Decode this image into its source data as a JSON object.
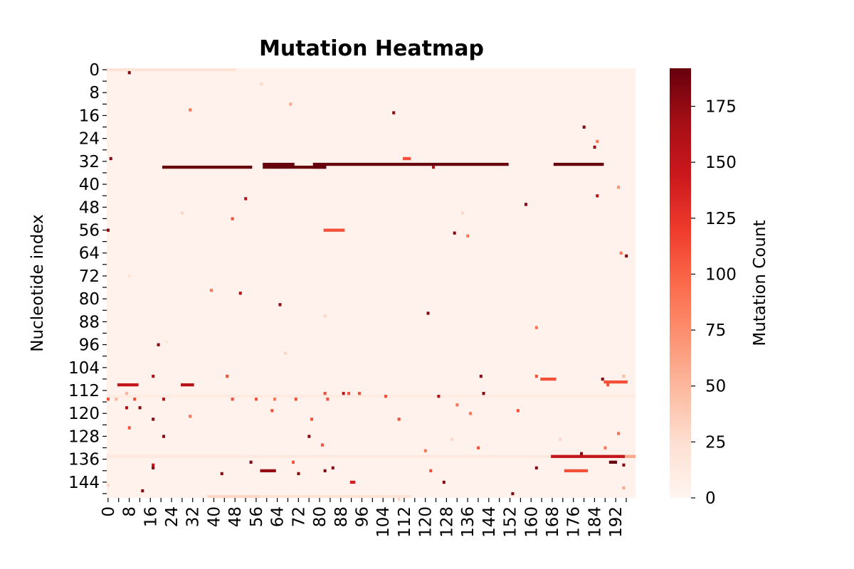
{
  "chart_data": {
    "type": "heatmap",
    "title": "Mutation Heatmap",
    "xlabel": "",
    "ylabel": "Nucleotide index",
    "rows": 150,
    "cols": 200,
    "x_tick_step": 4,
    "y_tick_step": 4,
    "x_ticks": [
      "0",
      "8",
      "16",
      "24",
      "32",
      "40",
      "48",
      "56",
      "64",
      "72",
      "80",
      "88",
      "96",
      "104",
      "112",
      "120",
      "128",
      "136",
      "144",
      "152",
      "160",
      "168",
      "176",
      "184",
      "192"
    ],
    "y_ticks": [
      "0",
      "8",
      "16",
      "24",
      "32",
      "40",
      "48",
      "56",
      "64",
      "72",
      "80",
      "88",
      "96",
      "104",
      "112",
      "120",
      "128",
      "136",
      "144"
    ],
    "colorbar": {
      "label": "Mutation Count",
      "min": 0,
      "max": 192,
      "ticks": [
        "0",
        "25",
        "50",
        "75",
        "100",
        "125",
        "150",
        "175"
      ],
      "colormap": "Reds",
      "colors": [
        "#fff5f0",
        "#fee0d2",
        "#fcbba1",
        "#fc9272",
        "#fb6a4a",
        "#ef3b2c",
        "#cb181d",
        "#a50f15",
        "#67000d"
      ]
    },
    "background_value": 3,
    "segments": [
      {
        "row": 0,
        "c0": 0,
        "c1": 49,
        "v": 20
      },
      {
        "row": 34,
        "c0": 21,
        "c1": 55,
        "v": 192
      },
      {
        "row": 33,
        "c0": 59,
        "c1": 71,
        "v": 192
      },
      {
        "row": 34,
        "c0": 59,
        "c1": 83,
        "v": 192
      },
      {
        "row": 33,
        "c0": 78,
        "c1": 152,
        "v": 192
      },
      {
        "row": 34,
        "c0": 78,
        "c1": 83,
        "v": 192
      },
      {
        "row": 33,
        "c0": 169,
        "c1": 188,
        "v": 192
      },
      {
        "row": 56,
        "c0": 82,
        "c1": 90,
        "v": 110
      },
      {
        "row": 108,
        "c0": 164,
        "c1": 170,
        "v": 110
      },
      {
        "row": 110,
        "c0": 4,
        "c1": 12,
        "v": 150
      },
      {
        "row": 110,
        "c0": 28,
        "c1": 33,
        "v": 160
      },
      {
        "row": 109,
        "c0": 188,
        "c1": 197,
        "v": 110
      },
      {
        "row": 114,
        "c0": 0,
        "c1": 200,
        "v": 12
      },
      {
        "row": 135,
        "c0": 0,
        "c1": 51,
        "v": 60
      },
      {
        "row": 135,
        "c0": 0,
        "c1": 200,
        "v": 14
      },
      {
        "row": 135,
        "c0": 168,
        "c1": 196,
        "v": 150
      },
      {
        "row": 135,
        "c0": 196,
        "c1": 200,
        "v": 60
      },
      {
        "row": 140,
        "c0": 58,
        "c1": 64,
        "v": 175
      },
      {
        "row": 140,
        "c0": 173,
        "c1": 182,
        "v": 110
      },
      {
        "row": 149,
        "c0": 38,
        "c1": 58,
        "v": 30
      },
      {
        "row": 149,
        "c0": 58,
        "c1": 115,
        "v": 20
      },
      {
        "row": 137,
        "c0": 190,
        "c1": 193,
        "v": 192
      },
      {
        "row": 144,
        "c0": 92,
        "c1": 94,
        "v": 140
      },
      {
        "row": 31,
        "c0": 112,
        "c1": 115,
        "v": 110
      }
    ],
    "points": [
      [
        1,
        8,
        180
      ],
      [
        5,
        58,
        30
      ],
      [
        12,
        69,
        60
      ],
      [
        14,
        31,
        90
      ],
      [
        15,
        108,
        180
      ],
      [
        20,
        180,
        180
      ],
      [
        25,
        185,
        90
      ],
      [
        27,
        184,
        180
      ],
      [
        31,
        1,
        180
      ],
      [
        34,
        123,
        160
      ],
      [
        41,
        193,
        70
      ],
      [
        44,
        185,
        160
      ],
      [
        45,
        52,
        160
      ],
      [
        47,
        158,
        180
      ],
      [
        50,
        28,
        30
      ],
      [
        52,
        47,
        110
      ],
      [
        56,
        0,
        180
      ],
      [
        57,
        131,
        180
      ],
      [
        58,
        136,
        90
      ],
      [
        64,
        194,
        90
      ],
      [
        65,
        196,
        180
      ],
      [
        77,
        39,
        90
      ],
      [
        78,
        50,
        160
      ],
      [
        82,
        65,
        180
      ],
      [
        85,
        121,
        180
      ],
      [
        90,
        162,
        90
      ],
      [
        96,
        19,
        180
      ],
      [
        107,
        17,
        160
      ],
      [
        107,
        141,
        180
      ],
      [
        107,
        162,
        110
      ],
      [
        107,
        195,
        50
      ],
      [
        107,
        45,
        110
      ],
      [
        108,
        187,
        180
      ],
      [
        110,
        189,
        110
      ],
      [
        113,
        7,
        50
      ],
      [
        113,
        82,
        110
      ],
      [
        113,
        91,
        110
      ],
      [
        113,
        95,
        110
      ],
      [
        113,
        89,
        150
      ],
      [
        113,
        142,
        180
      ],
      [
        114,
        105,
        110
      ],
      [
        114,
        125,
        160
      ],
      [
        115,
        0,
        110
      ],
      [
        115,
        3,
        50
      ],
      [
        115,
        10,
        110
      ],
      [
        115,
        21,
        160
      ],
      [
        115,
        47,
        110
      ],
      [
        115,
        56,
        110
      ],
      [
        115,
        63,
        90
      ],
      [
        115,
        71,
        110
      ],
      [
        115,
        83,
        110
      ],
      [
        117,
        132,
        90
      ],
      [
        118,
        7,
        160
      ],
      [
        118,
        12,
        180
      ],
      [
        119,
        62,
        110
      ],
      [
        119,
        155,
        110
      ],
      [
        120,
        137,
        90
      ],
      [
        121,
        31,
        90
      ],
      [
        122,
        17,
        180
      ],
      [
        122,
        110,
        110
      ],
      [
        122,
        77,
        110
      ],
      [
        125,
        8,
        110
      ],
      [
        127,
        193,
        90
      ],
      [
        128,
        76,
        180
      ],
      [
        128,
        21,
        180
      ],
      [
        129,
        130,
        30
      ],
      [
        129,
        171,
        30
      ],
      [
        131,
        81,
        110
      ],
      [
        132,
        140,
        110
      ],
      [
        132,
        188,
        90
      ],
      [
        133,
        120,
        90
      ],
      [
        134,
        179,
        180
      ],
      [
        137,
        54,
        180
      ],
      [
        137,
        70,
        110
      ],
      [
        138,
        17,
        150
      ],
      [
        138,
        195,
        180
      ],
      [
        139,
        17,
        180
      ],
      [
        139,
        85,
        180
      ],
      [
        139,
        162,
        180
      ],
      [
        140,
        122,
        110
      ],
      [
        140,
        82,
        180
      ],
      [
        141,
        43,
        180
      ],
      [
        141,
        72,
        180
      ],
      [
        144,
        127,
        180
      ],
      [
        145,
        0,
        30
      ],
      [
        147,
        13,
        180
      ],
      [
        148,
        153,
        180
      ],
      [
        146,
        195,
        60
      ],
      [
        150,
        110,
        30
      ],
      [
        50,
        134,
        30
      ],
      [
        86,
        82,
        30
      ],
      [
        99,
        67,
        30
      ],
      [
        72,
        8,
        20
      ],
      [
        95,
        22,
        20
      ]
    ]
  }
}
